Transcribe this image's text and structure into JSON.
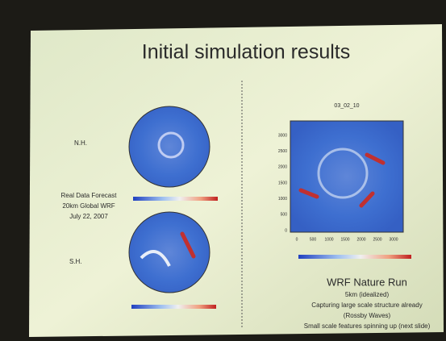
{
  "slide": {
    "title": "Initial simulation results",
    "left": {
      "nh_label": "N.H.",
      "sh_label": "S.H.",
      "forecast": [
        "Real Data Forecast",
        "20km Global WRF",
        "July 22, 2007"
      ]
    },
    "right": {
      "plot_title": "03_02_10",
      "yticks": [
        "3000",
        "2500",
        "2000",
        "1500",
        "1000",
        "500",
        "0"
      ],
      "xticks": [
        "0",
        "500",
        "1000",
        "1500",
        "2000",
        "2500",
        "3000"
      ],
      "caption_title": "WRF Nature Run",
      "caption": [
        "5km (idealized)",
        "Capturing large scale structure already",
        "(Rossby Waves)",
        "Small scale features spinning up (next slide)"
      ]
    }
  }
}
